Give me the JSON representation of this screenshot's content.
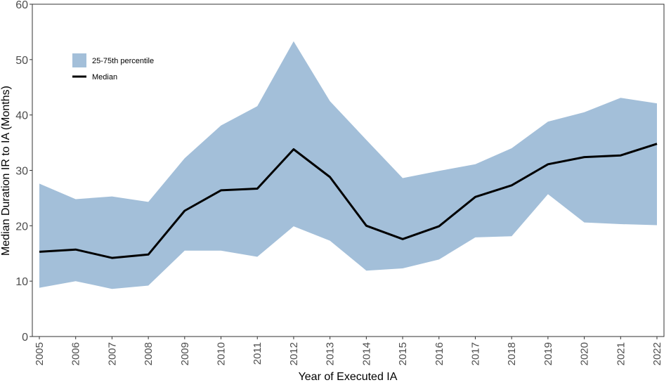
{
  "chart_data": {
    "type": "area",
    "x": [
      2005,
      2006,
      2007,
      2008,
      2009,
      2010,
      2011,
      2012,
      2013,
      2014,
      2015,
      2016,
      2017,
      2018,
      2019,
      2020,
      2021,
      2022
    ],
    "x_tick_labels": [
      "2005",
      "2006",
      "2007",
      "2008",
      "2009",
      "2010",
      "2011",
      "2012",
      "2013",
      "2014",
      "2015",
      "2016",
      "2017",
      "2018",
      "2019",
      "2020",
      "2021",
      "2022"
    ],
    "series": [
      {
        "name": "25-75th percentile",
        "kind": "band",
        "lower": [
          8.8,
          10.0,
          8.6,
          9.2,
          15.5,
          15.5,
          14.4,
          19.9,
          17.3,
          11.9,
          12.3,
          13.9,
          17.9,
          18.1,
          25.7,
          20.6,
          20.3,
          20.1
        ],
        "upper": [
          27.6,
          24.8,
          25.3,
          24.3,
          32.2,
          38.1,
          41.6,
          53.3,
          42.5,
          35.5,
          28.6,
          29.9,
          31.1,
          34.0,
          38.8,
          40.5,
          43.1,
          42.1
        ],
        "color": "#a3bfd9"
      },
      {
        "name": "Median",
        "kind": "line",
        "values": [
          15.3,
          15.7,
          14.2,
          14.8,
          22.7,
          26.4,
          26.7,
          33.8,
          28.8,
          20.0,
          17.6,
          19.9,
          25.2,
          27.3,
          31.1,
          32.4,
          32.7,
          34.8
        ],
        "color": "#000000"
      }
    ],
    "xlabel": "Year of Executed IA",
    "ylabel": "Median Duration IR to IA (Months)",
    "ylim": [
      0,
      60
    ],
    "yticks": [
      0,
      10,
      20,
      30,
      40,
      50,
      60
    ],
    "grid": false,
    "legend_position": "top-left"
  }
}
